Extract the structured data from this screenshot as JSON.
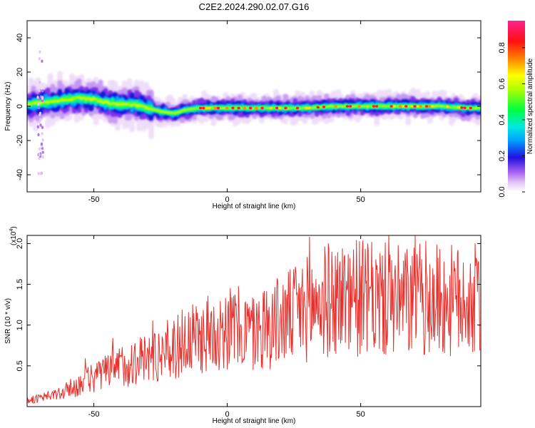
{
  "title": "C2E2.2024.290.02.07.G16",
  "spectrogram": {
    "type": "heatmap",
    "xlabel": "Height of straight line (km)",
    "ylabel": "Frequency (Hz)",
    "xlim": [
      -75,
      95
    ],
    "ylim": [
      -50,
      50
    ],
    "xticks": [
      -50,
      0,
      50
    ],
    "yticks": [
      40,
      20,
      0,
      -20,
      -40
    ],
    "yticklabels": [
      "40",
      "20",
      "0",
      "-20",
      "-40"
    ],
    "colorbar": {
      "label": "Normalized spectral amplitude",
      "range": [
        0.0,
        0.95
      ],
      "ticks": [
        0.0,
        0.2,
        0.4,
        0.6,
        0.8
      ],
      "ticklabels": [
        "0.0",
        "0.2",
        "0.4",
        "0.6",
        "0.8"
      ]
    },
    "ridge": {
      "x": [
        -75,
        -70,
        -65,
        -60,
        -55,
        -50,
        -45,
        -40,
        -35,
        -30,
        -25,
        -20,
        -15,
        -10,
        -5,
        0,
        10,
        20,
        30,
        40,
        50,
        60,
        70,
        80,
        90,
        95
      ],
      "y": [
        1,
        2,
        3,
        4,
        5,
        4,
        2,
        1,
        1,
        -1,
        -3,
        -4,
        -2,
        -1,
        -1,
        -1,
        -1,
        -1,
        -1,
        0,
        0,
        0,
        0,
        0,
        -1,
        -1
      ]
    }
  },
  "snr": {
    "type": "line",
    "xlabel": "Height of straight line (km)",
    "ylabel": "SNR (10 * v/v)",
    "multiplier": "(x10",
    "multiplier_exp": "4",
    "multiplier_close": ")",
    "xlim": [
      -75,
      95
    ],
    "ylim": [
      0.0,
      2.1
    ],
    "xticks": [
      -50,
      0,
      50
    ],
    "yticks": [
      0.5,
      1.0,
      1.5,
      2.0
    ],
    "yticklabels": [
      "0.5",
      "1.0",
      "1.5",
      "2.0"
    ],
    "envelope": {
      "x": [
        -75,
        -70,
        -65,
        -60,
        -55,
        -50,
        -45,
        -40,
        -35,
        -30,
        -25,
        -20,
        -15,
        -10,
        -5,
        0,
        5,
        10,
        15,
        20,
        25,
        30,
        35,
        40,
        45,
        50,
        55,
        60,
        65,
        70,
        75,
        80,
        85,
        90,
        95
      ],
      "y": [
        0.08,
        0.1,
        0.14,
        0.2,
        0.28,
        0.36,
        0.42,
        0.5,
        0.55,
        0.6,
        0.65,
        0.72,
        0.78,
        0.85,
        0.92,
        0.98,
        0.95,
        0.9,
        1.0,
        1.05,
        1.12,
        1.2,
        1.28,
        1.32,
        1.35,
        1.33,
        1.3,
        1.3,
        1.28,
        1.3,
        1.32,
        1.3,
        1.28,
        1.3,
        1.3
      ]
    },
    "color": "#e8302c"
  }
}
